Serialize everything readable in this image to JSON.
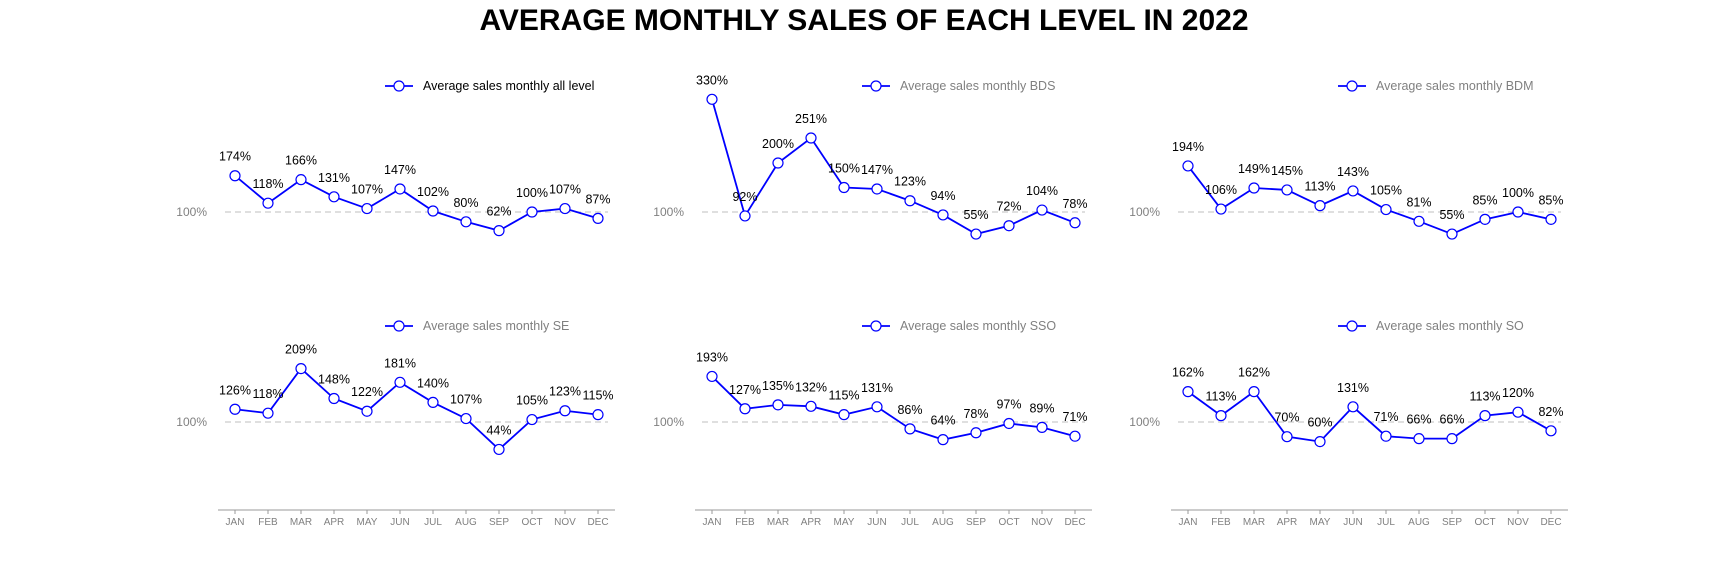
{
  "title": "AVERAGE MONTHLY SALES OF EACH LEVEL IN 2022",
  "colors": {
    "line": "#0000ff",
    "marker_fill": "#ffffff",
    "reference_line": "#cccccc",
    "muted_text": "#808080",
    "axis": "#999999"
  },
  "chart_data": [
    {
      "type": "line",
      "categories": [
        "JAN",
        "FEB",
        "MAR",
        "APR",
        "MAY",
        "JUN",
        "JUL",
        "AUG",
        "SEP",
        "OCT",
        "NOV",
        "DEC"
      ],
      "series": [
        {
          "name": "Average sales monthly all level",
          "values": [
            174,
            118,
            166,
            131,
            107,
            147,
            102,
            80,
            62,
            100,
            107,
            87
          ]
        }
      ],
      "value_labels": [
        "174%",
        "118%",
        "166%",
        "131%",
        "107%",
        "147%",
        "102%",
        "80%",
        "62%",
        "100%",
        "107%",
        "87%"
      ],
      "reference": {
        "value": 100,
        "label": "100%"
      },
      "legend": "top-right",
      "show_x_axis": false
    },
    {
      "type": "line",
      "categories": [
        "JAN",
        "FEB",
        "MAR",
        "APR",
        "MAY",
        "JUN",
        "JUL",
        "AUG",
        "SEP",
        "OCT",
        "NOV",
        "DEC"
      ],
      "series": [
        {
          "name": "Average sales monthly BDS",
          "values": [
            330,
            92,
            200,
            251,
            150,
            147,
            123,
            94,
            55,
            72,
            104,
            78
          ]
        }
      ],
      "value_labels": [
        "330%",
        "92%",
        "200%",
        "251%",
        "150%",
        "147%",
        "123%",
        "94%",
        "55%",
        "72%",
        "104%",
        "78%"
      ],
      "reference": {
        "value": 100,
        "label": "100%"
      },
      "legend": "top-right",
      "show_x_axis": false
    },
    {
      "type": "line",
      "categories": [
        "JAN",
        "FEB",
        "MAR",
        "APR",
        "MAY",
        "JUN",
        "JUL",
        "AUG",
        "SEP",
        "OCT",
        "NOV",
        "DEC"
      ],
      "series": [
        {
          "name": "Average sales monthly BDM",
          "values": [
            194,
            106,
            149,
            145,
            113,
            143,
            105,
            81,
            55,
            85,
            100,
            85
          ]
        }
      ],
      "value_labels": [
        "194%",
        "106%",
        "149%",
        "145%",
        "113%",
        "143%",
        "105%",
        "81%",
        "55%",
        "85%",
        "100%",
        "85%"
      ],
      "reference": {
        "value": 100,
        "label": "100%"
      },
      "legend": "top-right",
      "show_x_axis": false
    },
    {
      "type": "line",
      "categories": [
        "JAN",
        "FEB",
        "MAR",
        "APR",
        "MAY",
        "JUN",
        "JUL",
        "AUG",
        "SEP",
        "OCT",
        "NOV",
        "DEC"
      ],
      "series": [
        {
          "name": "Average sales monthly SE",
          "values": [
            126,
            118,
            209,
            148,
            122,
            181,
            140,
            107,
            44,
            105,
            123,
            115
          ]
        }
      ],
      "value_labels": [
        "126%",
        "118%",
        "209%",
        "148%",
        "122%",
        "181%",
        "140%",
        "107%",
        "44%",
        "105%",
        "123%",
        "115%"
      ],
      "reference": {
        "value": 100,
        "label": "100%"
      },
      "legend": "top-right",
      "show_x_axis": true
    },
    {
      "type": "line",
      "categories": [
        "JAN",
        "FEB",
        "MAR",
        "APR",
        "MAY",
        "JUN",
        "JUL",
        "AUG",
        "SEP",
        "OCT",
        "NOV",
        "DEC"
      ],
      "series": [
        {
          "name": "Average sales monthly SSO",
          "values": [
            193,
            127,
            135,
            132,
            115,
            131,
            86,
            64,
            78,
            97,
            89,
            71
          ]
        }
      ],
      "value_labels": [
        "193%",
        "127%",
        "135%",
        "132%",
        "115%",
        "131%",
        "86%",
        "64%",
        "78%",
        "97%",
        "89%",
        "71%"
      ],
      "reference": {
        "value": 100,
        "label": "100%"
      },
      "legend": "top-right",
      "show_x_axis": true
    },
    {
      "type": "line",
      "categories": [
        "JAN",
        "FEB",
        "MAR",
        "APR",
        "MAY",
        "JUN",
        "JUL",
        "AUG",
        "SEP",
        "OCT",
        "NOV",
        "DEC"
      ],
      "series": [
        {
          "name": "Average sales monthly SO",
          "values": [
            162,
            113,
            162,
            70,
            60,
            131,
            71,
            66,
            66,
            113,
            120,
            82
          ]
        }
      ],
      "value_labels": [
        "162%",
        "113%",
        "162%",
        "70%",
        "60%",
        "131%",
        "71%",
        "66%",
        "66%",
        "113%",
        "120%",
        "82%"
      ],
      "reference": {
        "value": 100,
        "label": "100%"
      },
      "legend": "top-right",
      "show_x_axis": true
    }
  ]
}
